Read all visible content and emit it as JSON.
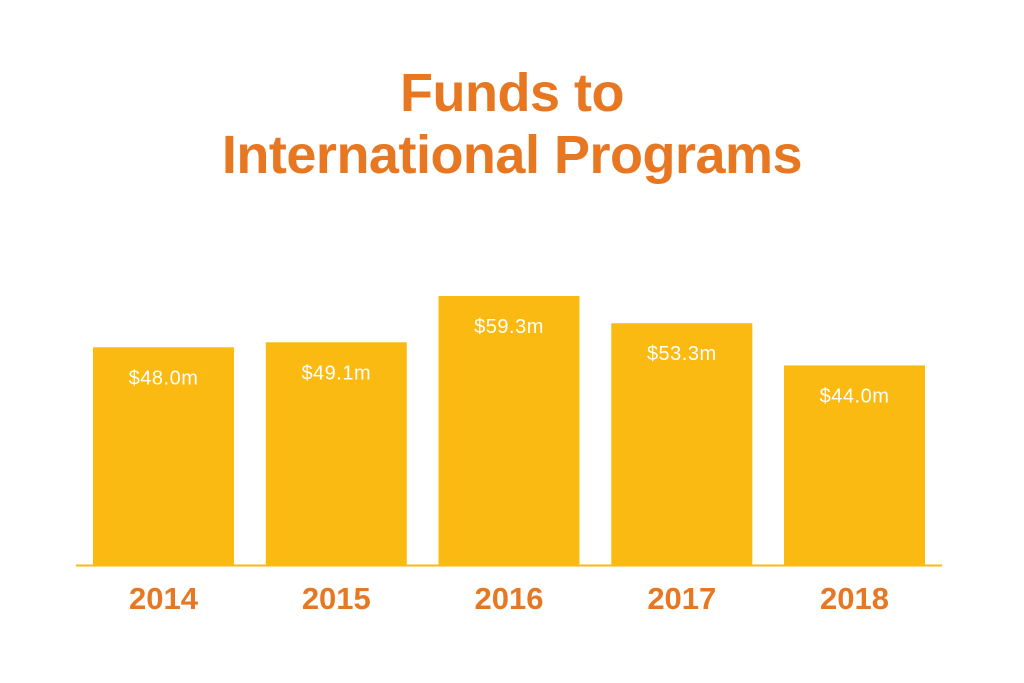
{
  "title_lines": [
    "Funds to",
    "International Programs"
  ],
  "colors": {
    "bar": "#FBBA12",
    "title": "#E87722",
    "baseline": "#FBBA12",
    "value_text": "#FFFFFF",
    "year_text": "#E87722"
  },
  "chart_data": {
    "type": "bar",
    "title": "Funds to International Programs",
    "categories": [
      "2014",
      "2015",
      "2016",
      "2017",
      "2018"
    ],
    "values": [
      48.0,
      49.1,
      59.3,
      53.3,
      44.0
    ],
    "data_labels": [
      "$48.0m",
      "$49.1m",
      "$59.3m",
      "$53.3m",
      "$44.0m"
    ],
    "unit": "$m",
    "xlabel": "",
    "ylabel": "",
    "ylim": [
      0,
      59.3
    ],
    "grid": false,
    "legend": "none"
  }
}
